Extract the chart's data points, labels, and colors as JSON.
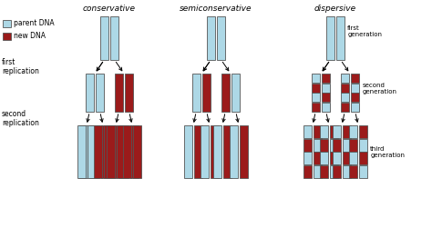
{
  "title_conservative": "conservative",
  "title_semiconservative": "semiconservative",
  "title_dispersive": "dispersive",
  "color_parent": "#add8e6",
  "color_new": "#9b1b1b",
  "color_outline": "#666666",
  "color_bg": "#ffffff",
  "legend_parent": "parent DNA",
  "legend_new": "new DNA",
  "label_first_rep": "first\nreplication",
  "label_second_rep": "second\nreplication",
  "label_first_gen": "first\ngeneration",
  "label_second_gen": "second\ngeneration",
  "label_third_gen": "third\ngeneration"
}
